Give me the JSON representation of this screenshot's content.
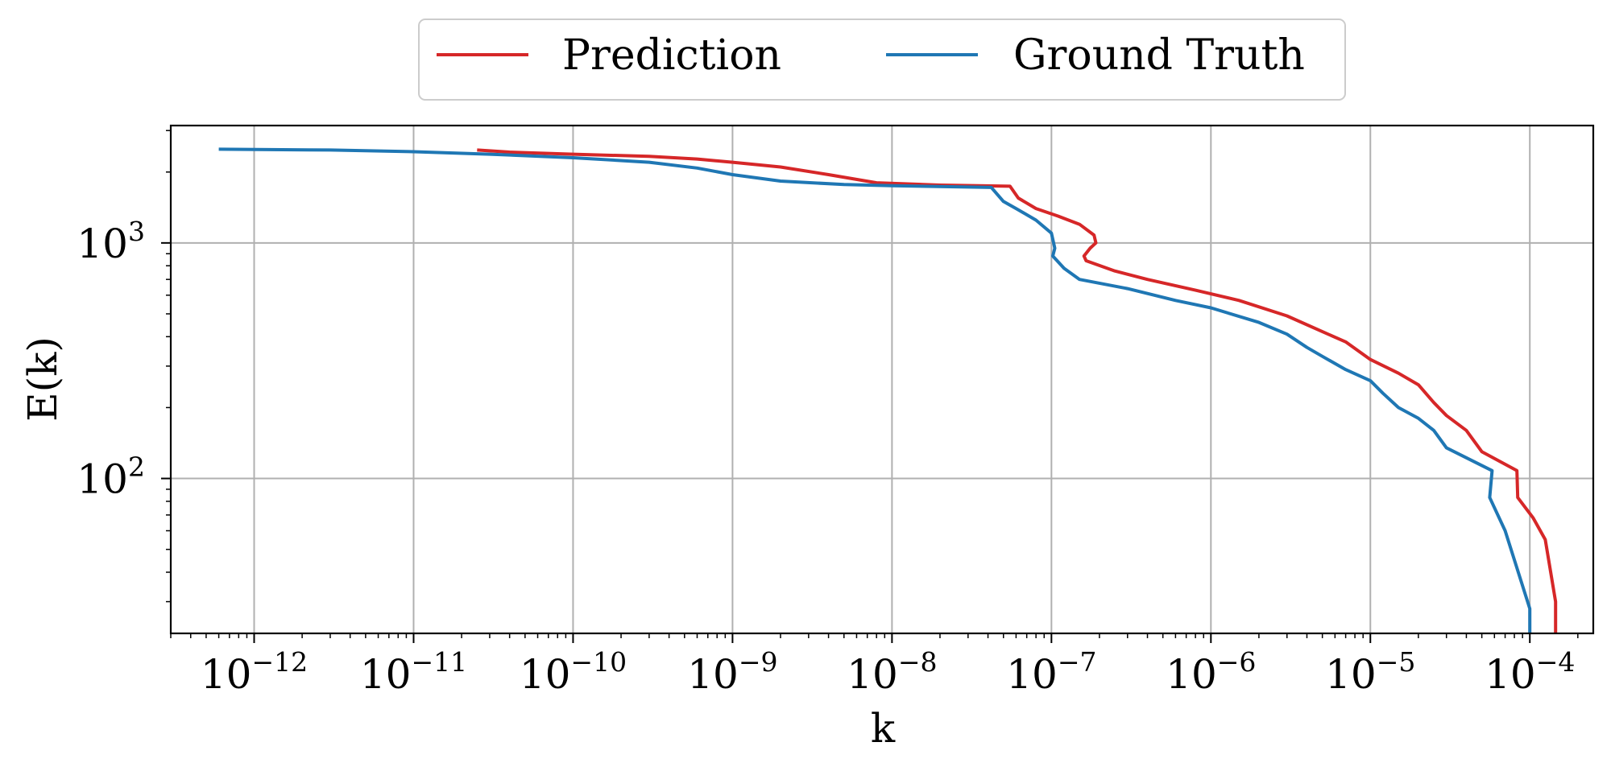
{
  "chart_data": {
    "type": "line",
    "title": "",
    "xlabel": "k",
    "ylabel": "E(k)",
    "xscale": "log",
    "yscale": "log",
    "xlim": [
      3e-13,
      0.00025
    ],
    "ylim": [
      22,
      3150
    ],
    "grid": true,
    "legend": {
      "placement": "top-center, above plot",
      "ncol": 2
    },
    "x_ticks": [
      {
        "base": "10",
        "exp": "−12",
        "value": 1e-12
      },
      {
        "base": "10",
        "exp": "−11",
        "value": 1e-11
      },
      {
        "base": "10",
        "exp": "−10",
        "value": 1e-10
      },
      {
        "base": "10",
        "exp": "−9",
        "value": 1e-09
      },
      {
        "base": "10",
        "exp": "−8",
        "value": 1e-08
      },
      {
        "base": "10",
        "exp": "−7",
        "value": 1e-07
      },
      {
        "base": "10",
        "exp": "−6",
        "value": 1e-06
      },
      {
        "base": "10",
        "exp": "−5",
        "value": 1e-05
      },
      {
        "base": "10",
        "exp": "−4",
        "value": 0.0001
      }
    ],
    "y_ticks": [
      {
        "base": "10",
        "exp": "2",
        "value": 100
      },
      {
        "base": "10",
        "exp": "3",
        "value": 1000
      }
    ],
    "series": [
      {
        "name": "Prediction",
        "color": "#d62728",
        "points": [
          [
            2.5e-11,
            2480
          ],
          [
            4e-11,
            2430
          ],
          [
            1e-10,
            2380
          ],
          [
            3e-10,
            2330
          ],
          [
            6e-10,
            2270
          ],
          [
            1e-09,
            2200
          ],
          [
            2e-09,
            2100
          ],
          [
            4e-09,
            1950
          ],
          [
            8e-09,
            1800
          ],
          [
            2e-08,
            1760
          ],
          [
            5.5e-08,
            1740
          ],
          [
            6.2e-08,
            1550
          ],
          [
            8e-08,
            1400
          ],
          [
            1.1e-07,
            1300
          ],
          [
            1.5e-07,
            1200
          ],
          [
            1.85e-07,
            1080
          ],
          [
            1.9e-07,
            1000
          ],
          [
            1.75e-07,
            950
          ],
          [
            1.6e-07,
            880
          ],
          [
            1.65e-07,
            840
          ],
          [
            2.5e-07,
            760
          ],
          [
            4e-07,
            700
          ],
          [
            8e-07,
            630
          ],
          [
            1.5e-06,
            570
          ],
          [
            3e-06,
            490
          ],
          [
            5e-06,
            420
          ],
          [
            7e-06,
            380
          ],
          [
            1e-05,
            320
          ],
          [
            1.5e-05,
            280
          ],
          [
            2e-05,
            250
          ],
          [
            2.5e-05,
            210
          ],
          [
            3e-05,
            185
          ],
          [
            4e-05,
            160
          ],
          [
            5e-05,
            130
          ],
          [
            8.3e-05,
            108
          ],
          [
            8.4e-05,
            83
          ],
          [
            0.000105,
            68
          ],
          [
            0.000125,
            55
          ],
          [
            0.000145,
            30
          ],
          [
            0.000145,
            22
          ]
        ]
      },
      {
        "name": "Ground Truth",
        "color": "#1f77b4",
        "points": [
          [
            6e-13,
            2500
          ],
          [
            3e-12,
            2480
          ],
          [
            1e-11,
            2440
          ],
          [
            3e-11,
            2380
          ],
          [
            1e-10,
            2300
          ],
          [
            3e-10,
            2200
          ],
          [
            6e-10,
            2080
          ],
          [
            1e-09,
            1950
          ],
          [
            2e-09,
            1830
          ],
          [
            5e-09,
            1770
          ],
          [
            1e-08,
            1750
          ],
          [
            4.2e-08,
            1720
          ],
          [
            5e-08,
            1500
          ],
          [
            6e-08,
            1400
          ],
          [
            8e-08,
            1250
          ],
          [
            1e-07,
            1100
          ],
          [
            1.05e-07,
            950
          ],
          [
            1.02e-07,
            880
          ],
          [
            1.2e-07,
            780
          ],
          [
            1.5e-07,
            700
          ],
          [
            3e-07,
            640
          ],
          [
            6e-07,
            570
          ],
          [
            1e-06,
            530
          ],
          [
            2e-06,
            460
          ],
          [
            3e-06,
            410
          ],
          [
            4e-06,
            360
          ],
          [
            5e-06,
            330
          ],
          [
            7e-06,
            290
          ],
          [
            1e-05,
            260
          ],
          [
            1.2e-05,
            230
          ],
          [
            1.5e-05,
            200
          ],
          [
            2e-05,
            180
          ],
          [
            2.5e-05,
            160
          ],
          [
            3e-05,
            135
          ],
          [
            5.8e-05,
            108
          ],
          [
            5.6e-05,
            83
          ],
          [
            7e-05,
            60
          ],
          [
            0.0001,
            28
          ],
          [
            0.0001,
            22
          ]
        ]
      }
    ]
  }
}
